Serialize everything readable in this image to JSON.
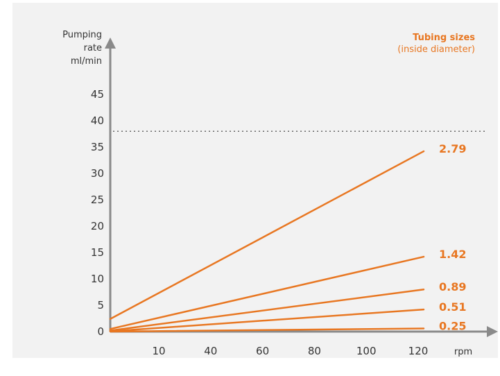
{
  "chart_data": {
    "type": "line",
    "title": "",
    "ylabel_lines": [
      "Pumping",
      "rate",
      "ml/min"
    ],
    "xlabel": "rpm",
    "legend": {
      "title": "Tubing sizes",
      "subtitle": "(inside diameter)",
      "position": "top-right"
    },
    "x_tick_labels": [
      "10",
      "40",
      "60",
      "80",
      "100",
      "120"
    ],
    "y_ticks": [
      0,
      5,
      10,
      15,
      20,
      25,
      30,
      35,
      40,
      45
    ],
    "ylim": [
      0,
      50
    ],
    "reference_line": {
      "y": 38,
      "style": "dotted"
    },
    "grid": false,
    "series": [
      {
        "name": "2.79",
        "start": 2.4,
        "end": 34.2
      },
      {
        "name": "1.42",
        "start": 0.5,
        "end": 14.2
      },
      {
        "name": "0.89",
        "start": 0.2,
        "end": 8.0
      },
      {
        "name": "0.51",
        "start": 0.05,
        "end": 4.2
      },
      {
        "name": "0.25",
        "start": 0.0,
        "end": 0.6
      }
    ],
    "colors": {
      "axis": "#8a8a8a",
      "series": "#e87722",
      "text": "#333333",
      "reference": "#666666"
    }
  }
}
